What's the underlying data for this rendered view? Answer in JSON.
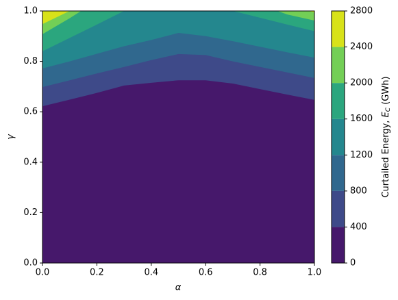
{
  "chart_data": {
    "type": "contour",
    "x_label": "α",
    "y_label": "γ",
    "colorbar_label": {
      "text": "Curtailed Energy, ",
      "symbol": "E",
      "subscript": "C",
      "unit": " (GWh)"
    },
    "x": [
      0,
      0.1,
      0.2,
      0.3,
      0.4,
      0.5,
      0.6,
      0.7,
      0.8,
      0.9,
      1.0
    ],
    "boundaries": [
      [
        0.622,
        0.648,
        0.675,
        0.704,
        0.715,
        0.725,
        0.725,
        0.712,
        0.69,
        0.668,
        0.647
      ],
      [
        0.698,
        0.725,
        0.752,
        0.778,
        0.805,
        0.829,
        0.825,
        0.8,
        0.778,
        0.756,
        0.734
      ],
      [
        0.772,
        0.8,
        0.83,
        0.86,
        0.885,
        0.913,
        0.9,
        0.88,
        0.858,
        0.836,
        0.815
      ],
      [
        0.84,
        0.893,
        0.946,
        1.0,
        null,
        null,
        null,
        1.0,
        0.973,
        0.946,
        0.92
      ],
      [
        0.908,
        0.971,
        null,
        null,
        null,
        null,
        null,
        null,
        null,
        0.986,
        0.962
      ],
      [
        0.948,
        1.0,
        null,
        null,
        null,
        null,
        null,
        null,
        null,
        null,
        0.995
      ]
    ],
    "levels": [
      0,
      400,
      800,
      1200,
      1600,
      2000,
      2400,
      2800
    ],
    "colors": [
      "#46186b",
      "#3e4a89",
      "#30688e",
      "#24878e",
      "#2ba67e",
      "#73cf56",
      "#d8e219"
    ],
    "xlim": [
      0,
      1
    ],
    "ylim": [
      0,
      1
    ],
    "xticks": [
      {
        "value": 0,
        "label": "0.0"
      },
      {
        "value": 0.2,
        "label": "0.2"
      },
      {
        "value": 0.4,
        "label": "0.4"
      },
      {
        "value": 0.6,
        "label": "0.6"
      },
      {
        "value": 0.8,
        "label": "0.8"
      },
      {
        "value": 1,
        "label": "1.0"
      }
    ],
    "yticks": [
      {
        "value": 0,
        "label": "0.0"
      },
      {
        "value": 0.2,
        "label": "0.2"
      },
      {
        "value": 0.4,
        "label": "0.4"
      },
      {
        "value": 0.6,
        "label": "0.6"
      },
      {
        "value": 0.8,
        "label": "0.8"
      },
      {
        "value": 1,
        "label": "1.0"
      }
    ]
  }
}
